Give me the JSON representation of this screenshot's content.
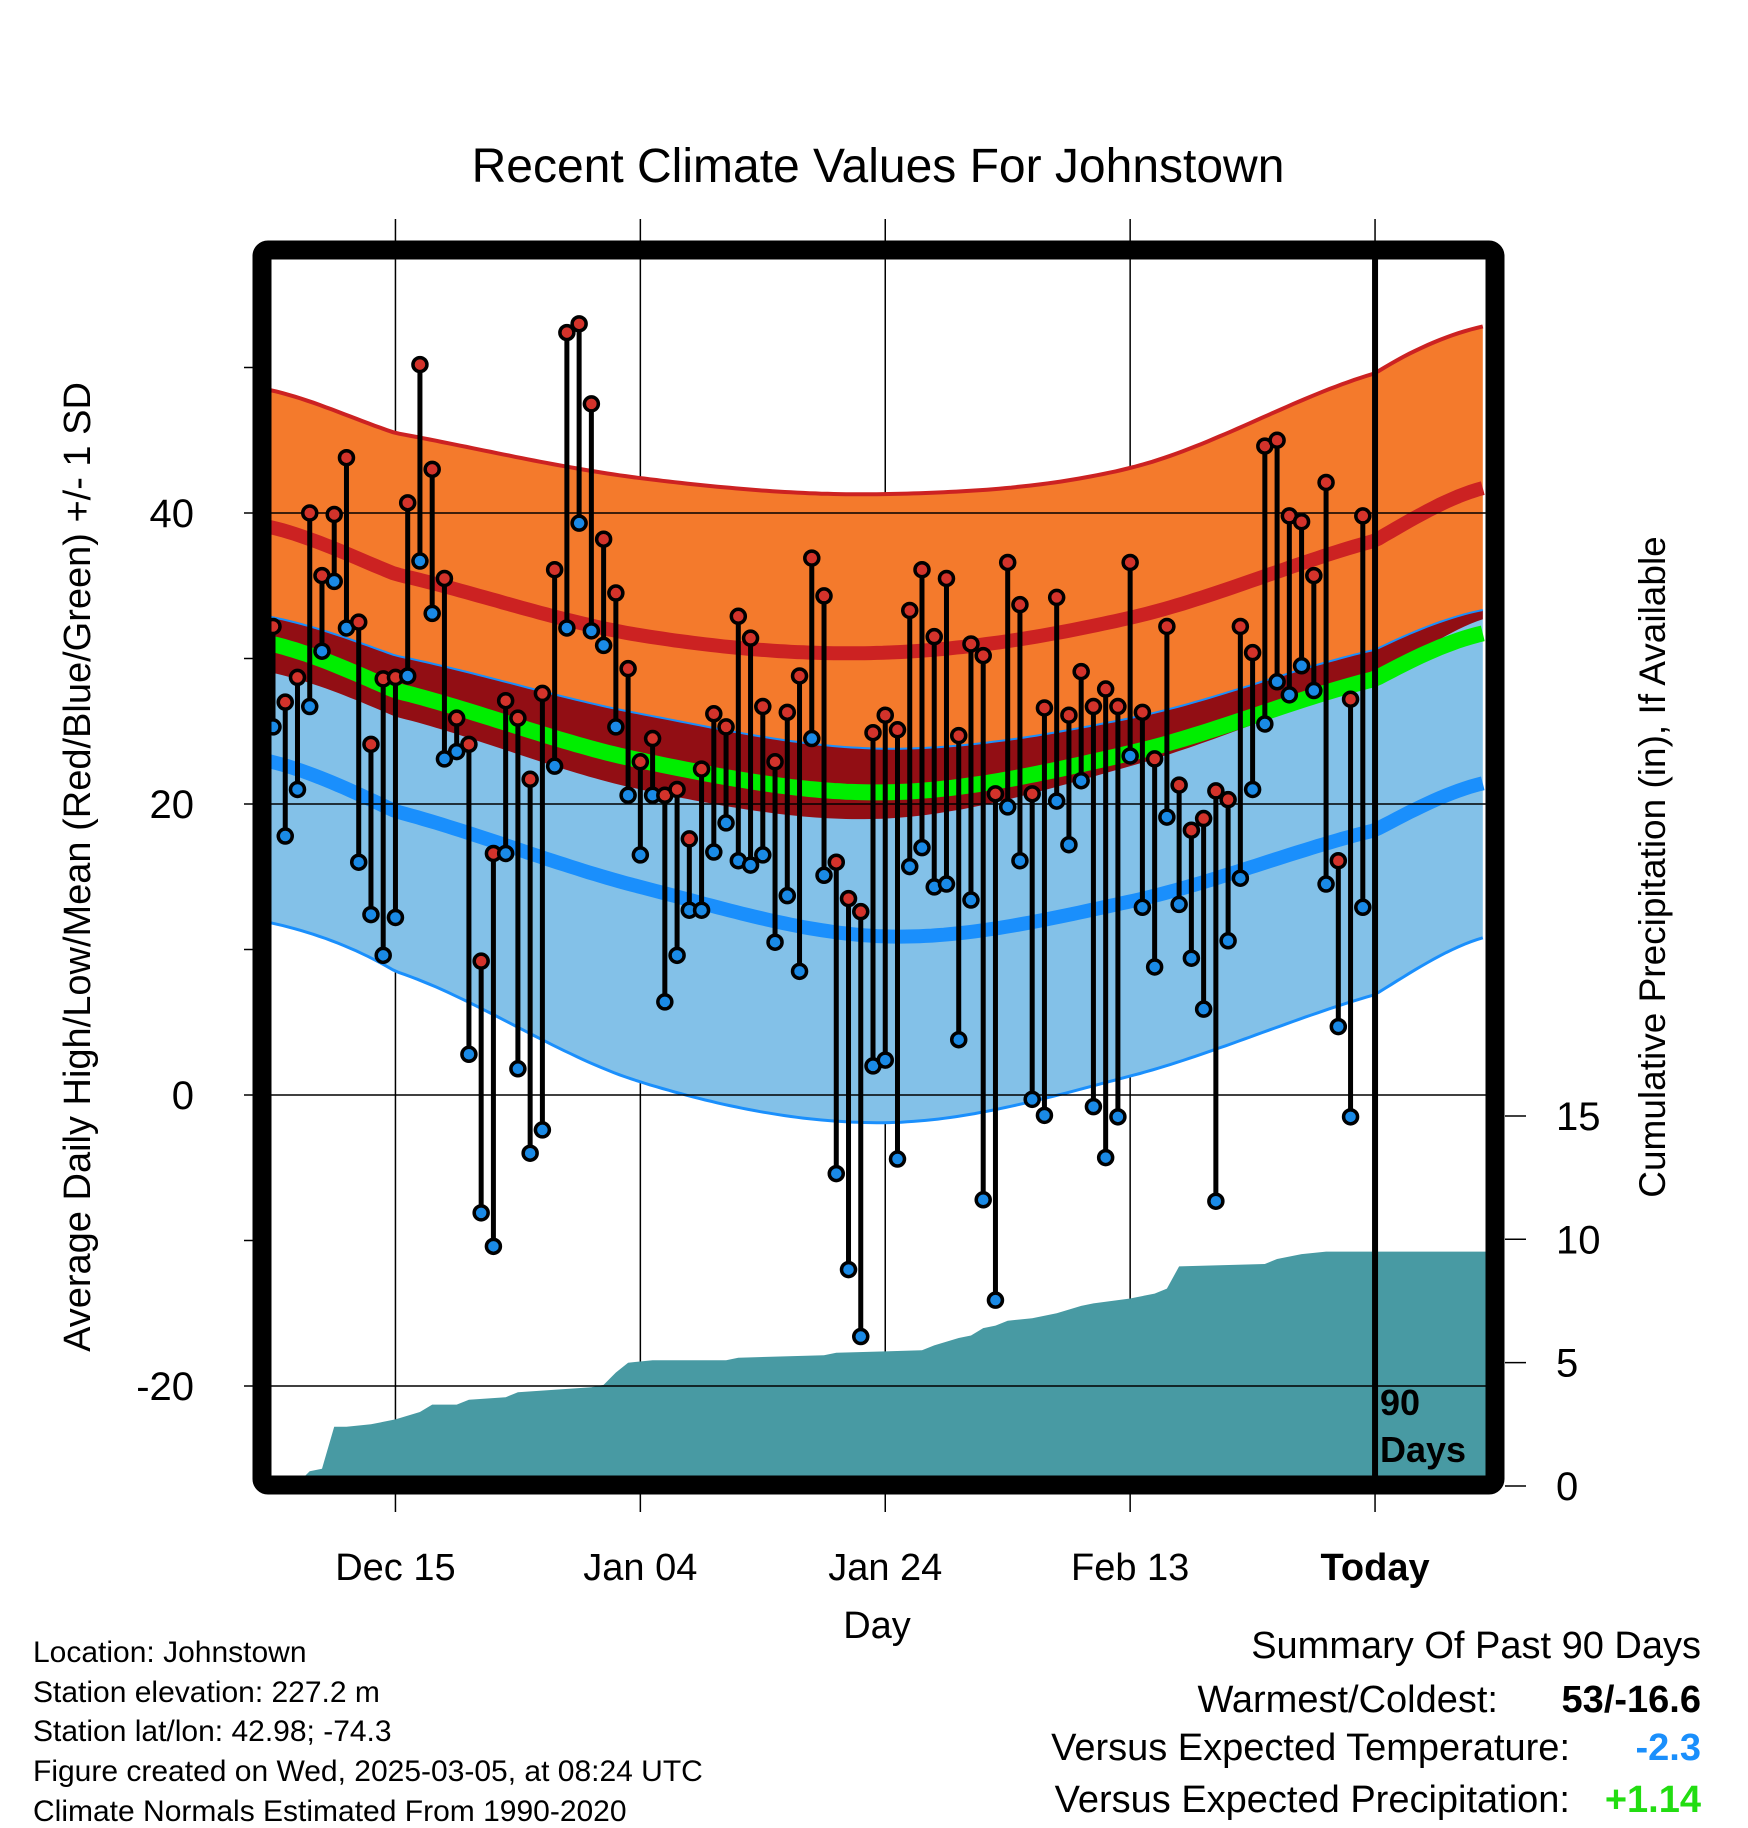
{
  "chart_data": {
    "type": "line",
    "title": "Recent Climate Values For Johnstown",
    "xlabel": "Day",
    "ylabel": "Average Daily High/Low/Mean (Red/Blue/Green) +/- 1 SD",
    "y2label": "Cumulative Precipitation (in), If Available",
    "ylim": [
      -26.2,
      57.4
    ],
    "y2lim": [
      0,
      30
    ],
    "grid": true,
    "x_start_date": "Dec 05",
    "x_ticks": [
      {
        "day": 10,
        "label": "Dec 15"
      },
      {
        "day": 30,
        "label": "Jan 04"
      },
      {
        "day": 50,
        "label": "Jan 24"
      },
      {
        "day": 70,
        "label": "Feb 13"
      },
      {
        "day": 90,
        "label": "Today"
      }
    ],
    "y_ticks": [
      {
        "value": 40,
        "label": "40"
      },
      {
        "value": 20,
        "label": "20"
      },
      {
        "value": 0,
        "label": "0"
      },
      {
        "value": -20,
        "label": "-20"
      }
    ],
    "y_minor_ticks": [
      50,
      30,
      10,
      -10
    ],
    "y2_ticks": [
      {
        "value": 15,
        "label": "15"
      },
      {
        "value": 10,
        "label": "10"
      },
      {
        "value": 5,
        "label": "5"
      },
      {
        "value": 0,
        "label": "0"
      }
    ],
    "today_label": [
      "90",
      "Days"
    ],
    "daily_high": [
      32.2,
      27.0,
      28.7,
      40.0,
      35.7,
      39.9,
      43.8,
      32.5,
      24.1,
      28.6,
      28.7,
      40.7,
      50.2,
      43.0,
      35.5,
      25.9,
      24.1,
      9.2,
      16.6,
      27.1,
      25.9,
      21.7,
      27.6,
      36.1,
      52.4,
      53.0,
      47.5,
      38.2,
      34.5,
      29.3,
      22.9,
      24.5,
      20.6,
      21.0,
      17.6,
      22.4,
      26.2,
      25.3,
      32.9,
      31.4,
      26.7,
      22.9,
      26.3,
      28.8,
      36.9,
      34.3,
      16.0,
      13.5,
      12.6,
      24.9,
      26.1,
      25.1,
      33.3,
      36.1,
      31.5,
      35.5,
      24.7,
      31.0,
      30.2,
      20.7,
      36.6,
      33.7,
      20.7,
      26.6,
      34.2,
      26.1,
      29.1,
      26.7,
      27.9,
      26.7,
      36.6,
      26.3,
      23.1,
      32.2,
      21.3,
      18.2,
      19.0,
      20.9,
      20.3,
      32.2,
      30.4,
      44.6,
      45.0,
      39.8,
      39.4,
      35.7,
      42.1,
      16.1,
      27.2,
      39.8
    ],
    "daily_low": [
      25.3,
      17.8,
      21.0,
      26.7,
      30.5,
      35.3,
      32.1,
      16.0,
      12.4,
      9.6,
      12.2,
      28.8,
      36.7,
      33.1,
      23.1,
      23.6,
      2.8,
      -8.1,
      -10.4,
      16.6,
      1.8,
      -4.0,
      -2.4,
      22.6,
      32.1,
      39.3,
      31.9,
      30.9,
      25.3,
      20.6,
      16.5,
      20.6,
      6.4,
      9.6,
      12.7,
      12.7,
      16.7,
      18.7,
      16.1,
      15.8,
      16.5,
      10.5,
      13.7,
      8.5,
      24.5,
      15.1,
      -5.4,
      -12.0,
      -16.6,
      2.0,
      2.4,
      -4.4,
      15.7,
      17.0,
      14.3,
      14.5,
      3.8,
      13.4,
      -7.2,
      -14.1,
      19.8,
      16.1,
      -0.3,
      -1.4,
      20.2,
      17.2,
      21.6,
      -0.8,
      -4.3,
      -1.5,
      23.3,
      12.9,
      8.8,
      19.1,
      13.1,
      9.4,
      5.9,
      -7.3,
      10.6,
      14.9,
      21.0,
      25.5,
      28.4,
      27.5,
      29.5,
      27.8,
      14.5,
      4.7,
      -1.5,
      12.9
    ],
    "normals": {
      "days": [
        -1.2,
        10,
        30,
        50,
        70,
        90,
        99.2
      ],
      "high_plus_sd": [
        48.6,
        45.5,
        42.4,
        41.3,
        43.1,
        49.6,
        52.9
      ],
      "high_mean": [
        39.2,
        35.8,
        31.6,
        30.4,
        32.8,
        38.1,
        41.8
      ],
      "high_minus_sd": [
        29.2,
        26.0,
        21.0,
        19.0,
        22.6,
        28.4,
        32.8
      ],
      "mean": [
        31.2,
        27.8,
        23.0,
        20.8,
        23.5,
        28.6,
        31.8
      ],
      "low_plus_sd": [
        33.0,
        30.2,
        26.2,
        23.8,
        25.9,
        30.6,
        33.4
      ],
      "low_mean": [
        23.1,
        19.5,
        14.3,
        10.9,
        13.3,
        18.2,
        21.5
      ],
      "low_minus_sd": [
        12.0,
        8.5,
        0.9,
        -1.9,
        1.3,
        6.9,
        10.9
      ]
    },
    "cumulative_precip": [
      [
        -1.2,
        0
      ],
      [
        2,
        0.1
      ],
      [
        3,
        0.6
      ],
      [
        4,
        0.7
      ],
      [
        5,
        2.4
      ],
      [
        6,
        2.4
      ],
      [
        8,
        2.5
      ],
      [
        10,
        2.7
      ],
      [
        12,
        3.0
      ],
      [
        13,
        3.3
      ],
      [
        15,
        3.3
      ],
      [
        16,
        3.5
      ],
      [
        19,
        3.6
      ],
      [
        20,
        3.8
      ],
      [
        26,
        4.0
      ],
      [
        27,
        4.1
      ],
      [
        28,
        4.6
      ],
      [
        29,
        5.0
      ],
      [
        31,
        5.1
      ],
      [
        37,
        5.1
      ],
      [
        38,
        5.2
      ],
      [
        45,
        5.3
      ],
      [
        46,
        5.4
      ],
      [
        53,
        5.5
      ],
      [
        54,
        5.7
      ],
      [
        56,
        6.0
      ],
      [
        57,
        6.1
      ],
      [
        58,
        6.4
      ],
      [
        59,
        6.5
      ],
      [
        60,
        6.7
      ],
      [
        62,
        6.8
      ],
      [
        64,
        7.0
      ],
      [
        66,
        7.3
      ],
      [
        67,
        7.4
      ],
      [
        70,
        7.6
      ],
      [
        72,
        7.8
      ],
      [
        73,
        8.0
      ],
      [
        74,
        8.9
      ],
      [
        81,
        9.0
      ],
      [
        82,
        9.2
      ],
      [
        84,
        9.4
      ],
      [
        86,
        9.5
      ],
      [
        99.2,
        9.5
      ]
    ],
    "colors": {
      "high_band": "#f47a2c",
      "high_line": "#cc2222",
      "overlap": "#920e14",
      "mean": "#00ee00",
      "low_band": "#83c1e8",
      "low_line": "#1a8ffc",
      "precip": "#489aa3",
      "high_dot": "#d3332b",
      "low_dot": "#1a8ae6"
    }
  },
  "footer": {
    "lines": [
      "Location: Johnstown",
      "Station elevation: 227.2 m",
      "Station lat/lon: 42.98; -74.3",
      "Figure created on Wed, 2025-03-05, at 08:24 UTC",
      "Climate Normals Estimated From 1990-2020"
    ]
  },
  "summary": {
    "title": "Summary Of Past 90 Days",
    "warmest_coldest_label": "Warmest/Coldest:",
    "warmest_coldest_value": "53/-16.6",
    "temp_label": "Versus Expected Temperature:",
    "temp_value": "-2.3",
    "temp_color": "#1a8ffc",
    "precip_label": "Versus Expected Precipitation:",
    "precip_value": "+1.14",
    "precip_color": "#22dd11"
  }
}
